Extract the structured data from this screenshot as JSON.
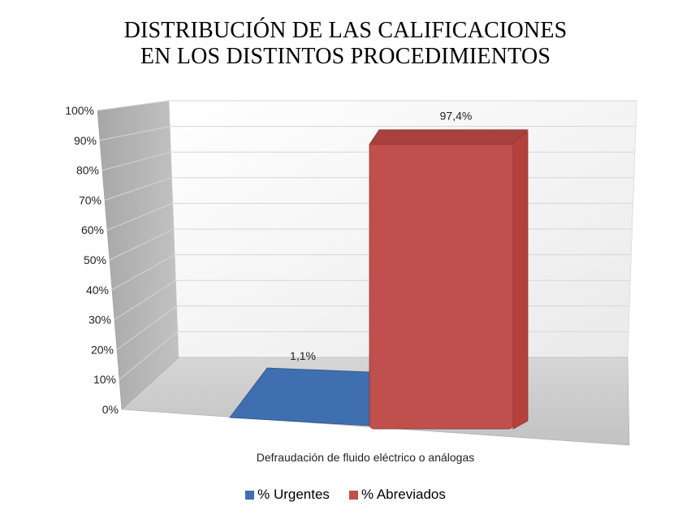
{
  "chart_data": {
    "type": "bar",
    "title_lines": [
      "DISTRIBUCIÓN DE LAS CALIFICACIONES",
      "EN LOS DISTINTOS PROCEDIMIENTOS"
    ],
    "categories": [
      "Defraudación de fluido eléctrico o análogas"
    ],
    "series": [
      {
        "name": "% Urgentes",
        "values": [
          1.1
        ],
        "label": "1,1%",
        "color": "#3f6fb0"
      },
      {
        "name": "% Abreviados",
        "values": [
          97.4
        ],
        "label": "97,4%",
        "color": "#c0504d"
      }
    ],
    "ylim": [
      0,
      100
    ],
    "y_ticks": [
      "0%",
      "10%",
      "20%",
      "30%",
      "40%",
      "50%",
      "60%",
      "70%",
      "80%",
      "90%",
      "100%"
    ],
    "grid": true,
    "legend_position": "bottom",
    "style": "3d-column"
  }
}
